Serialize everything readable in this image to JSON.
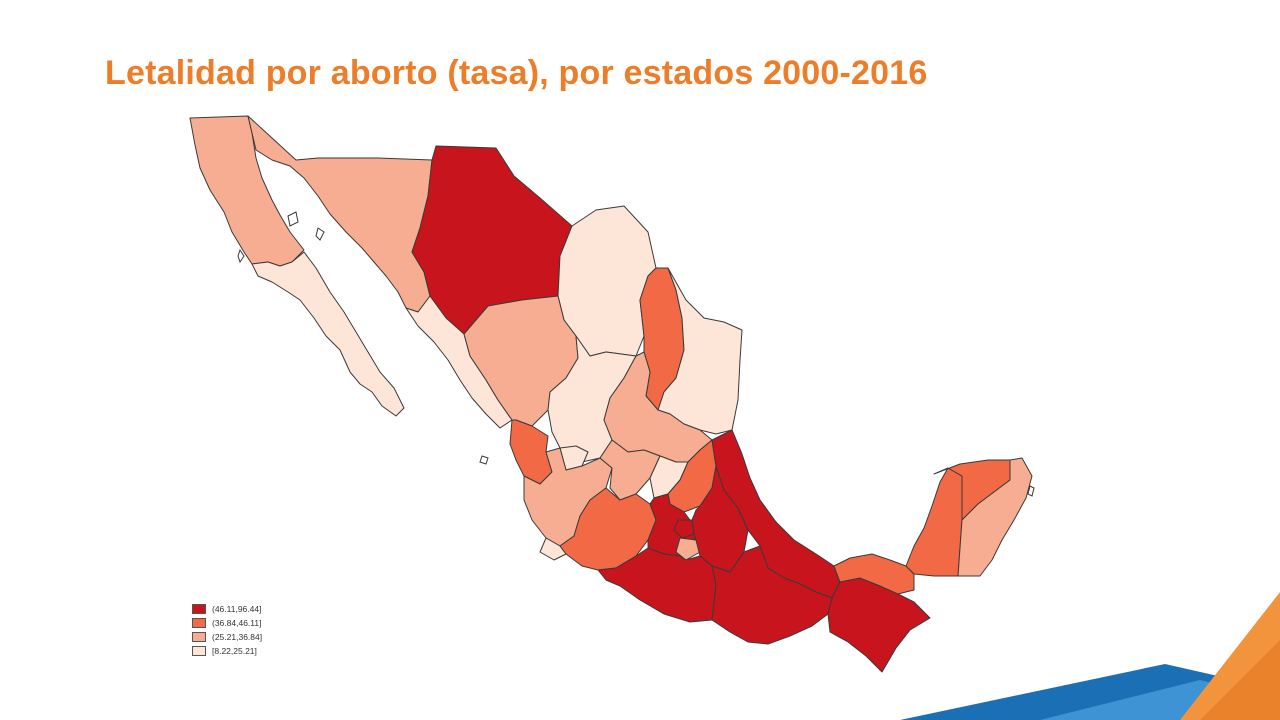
{
  "slide": {
    "title": "Letalidad por aborto (tasa), por estados 2000-2016"
  },
  "colors": {
    "title": "#ee7d2a",
    "class_1": "#c8151d",
    "class_2": "#f26a45",
    "class_3": "#f7ad91",
    "class_4": "#fde5d8",
    "border": "#3a3a3a",
    "accent_blue": "#1b6fb5",
    "accent_orange": "#f2943c"
  },
  "legend": {
    "items": [
      {
        "label": "(46.11,96.44]",
        "color": "#c8151d"
      },
      {
        "label": "(36.84,46.11]",
        "color": "#f26a45"
      },
      {
        "label": "(25.21,36.84]",
        "color": "#f7ad91"
      },
      {
        "label": "[8.22,25.21]",
        "color": "#fde5d8"
      }
    ]
  },
  "map": {
    "regions": [
      {
        "name": "Baja California",
        "class": 3
      },
      {
        "name": "Baja California Sur",
        "class": 4
      },
      {
        "name": "Sonora",
        "class": 3
      },
      {
        "name": "Chihuahua",
        "class": 1
      },
      {
        "name": "Coahuila",
        "class": 4
      },
      {
        "name": "Nuevo León",
        "class": 2
      },
      {
        "name": "Tamaulipas",
        "class": 4
      },
      {
        "name": "Sinaloa",
        "class": 4
      },
      {
        "name": "Durango",
        "class": 3
      },
      {
        "name": "Zacatecas",
        "class": 4
      },
      {
        "name": "San Luis Potosí",
        "class": 3
      },
      {
        "name": "Nayarit",
        "class": 2
      },
      {
        "name": "Aguascalientes",
        "class": 4
      },
      {
        "name": "Jalisco",
        "class": 3
      },
      {
        "name": "Guanajuato",
        "class": 3
      },
      {
        "name": "Querétaro",
        "class": 4
      },
      {
        "name": "Hidalgo",
        "class": 2
      },
      {
        "name": "Colima",
        "class": 4
      },
      {
        "name": "Michoacán",
        "class": 2
      },
      {
        "name": "Estado de México",
        "class": 1
      },
      {
        "name": "Ciudad de México",
        "class": 1
      },
      {
        "name": "Morelos",
        "class": 3
      },
      {
        "name": "Tlaxcala",
        "class": 1
      },
      {
        "name": "Puebla",
        "class": 1
      },
      {
        "name": "Veracruz",
        "class": 1
      },
      {
        "name": "Guerrero",
        "class": 1
      },
      {
        "name": "Oaxaca",
        "class": 1
      },
      {
        "name": "Chiapas",
        "class": 1
      },
      {
        "name": "Tabasco",
        "class": 2
      },
      {
        "name": "Campeche",
        "class": 2
      },
      {
        "name": "Yucatán",
        "class": 2
      },
      {
        "name": "Quintana Roo",
        "class": 3
      }
    ]
  }
}
